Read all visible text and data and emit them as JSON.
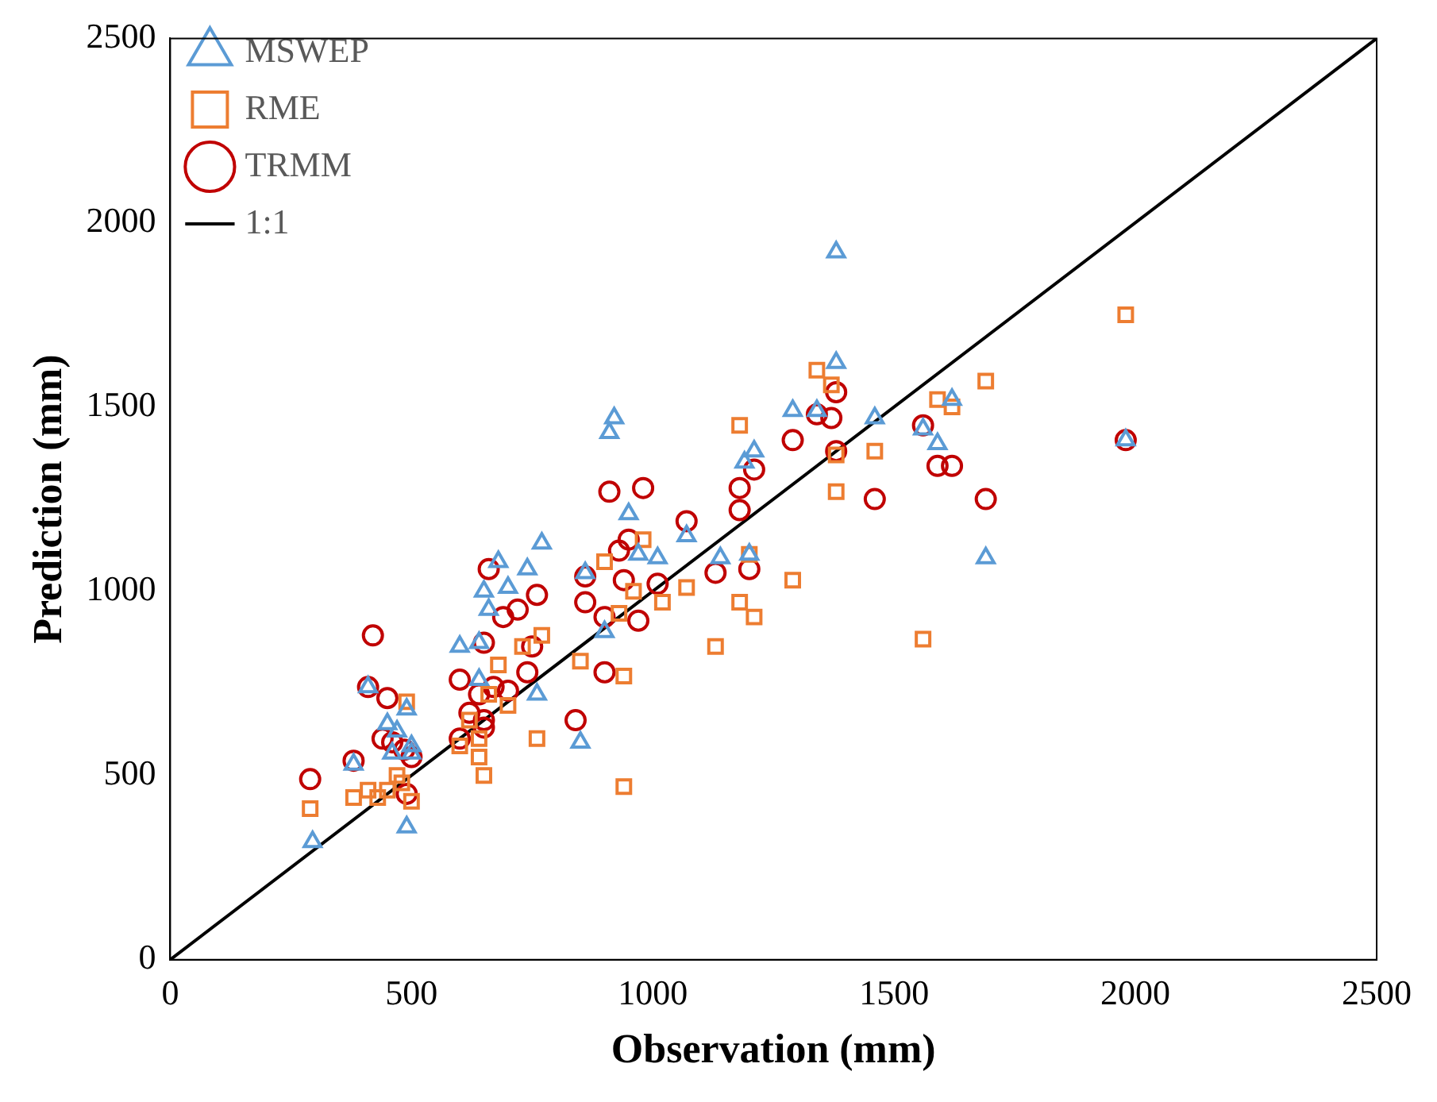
{
  "chart_data": {
    "type": "scatter",
    "xlabel": "Observation (mm)",
    "ylabel": "Prediction (mm)",
    "xlim": [
      0,
      2500
    ],
    "xticks": [
      0,
      500,
      1000,
      1500,
      2000,
      2500
    ],
    "ylim": [
      0,
      2500
    ],
    "yticks": [
      0,
      500,
      1000,
      1500,
      2000,
      2500
    ],
    "grid": false,
    "legend": "top left",
    "series": [
      {
        "name": "MSWEP",
        "color": "#5b9bd5",
        "marker": "triangle",
        "x": [
          295,
          380,
          410,
          450,
          470,
          490,
          490,
          500,
          600,
          640,
          650,
          660,
          680,
          700,
          740,
          760,
          770,
          850,
          860,
          900,
          910,
          920,
          950,
          970,
          1010,
          1070,
          1140,
          1190,
          1200,
          1210,
          1290,
          1340,
          1380,
          1380,
          1460,
          1560,
          1590,
          1620,
          1690,
          1980,
          640,
          460,
          500
        ],
        "values": [
          320,
          530,
          740,
          640,
          620,
          680,
          360,
          560,
          850,
          860,
          1000,
          950,
          1080,
          1010,
          1060,
          720,
          1130,
          590,
          1050,
          890,
          1430,
          1470,
          1210,
          1100,
          1090,
          1150,
          1090,
          1350,
          1100,
          1380,
          1490,
          1490,
          1920,
          1620,
          1470,
          1440,
          1400,
          1520,
          1090,
          1410,
          760,
          560,
          580
        ]
      },
      {
        "name": "RME",
        "color": "#ed7d31",
        "marker": "square",
        "x": [
          290,
          380,
          410,
          430,
          450,
          470,
          480,
          490,
          500,
          600,
          620,
          640,
          650,
          660,
          680,
          700,
          730,
          760,
          770,
          850,
          900,
          930,
          940,
          940,
          960,
          980,
          1020,
          1070,
          1130,
          1180,
          1180,
          1200,
          1210,
          1290,
          1340,
          1370,
          1380,
          1380,
          1460,
          1560,
          1590,
          1620,
          1690,
          1980,
          640
        ],
        "values": [
          410,
          440,
          460,
          440,
          460,
          500,
          480,
          700,
          430,
          580,
          650,
          550,
          500,
          720,
          800,
          690,
          850,
          600,
          880,
          810,
          1080,
          940,
          470,
          770,
          1000,
          1140,
          970,
          1010,
          850,
          970,
          1450,
          1100,
          930,
          1030,
          1600,
          1560,
          1270,
          1370,
          1380,
          870,
          1520,
          1500,
          1570,
          1750,
          600
        ]
      },
      {
        "name": "TRMM",
        "color": "#c00000",
        "marker": "circle",
        "x": [
          290,
          380,
          410,
          420,
          440,
          450,
          460,
          485,
          490,
          500,
          600,
          600,
          620,
          640,
          650,
          650,
          650,
          660,
          670,
          690,
          700,
          720,
          740,
          750,
          760,
          840,
          860,
          860,
          900,
          900,
          910,
          930,
          940,
          950,
          970,
          980,
          1010,
          1070,
          1130,
          1180,
          1180,
          1200,
          1210,
          1290,
          1340,
          1370,
          1380,
          1380,
          1460,
          1560,
          1590,
          1620,
          1690,
          1980
        ],
        "values": [
          490,
          540,
          740,
          880,
          600,
          710,
          590,
          570,
          450,
          550,
          760,
          600,
          670,
          720,
          650,
          630,
          860,
          1060,
          740,
          930,
          730,
          950,
          780,
          850,
          990,
          650,
          1040,
          970,
          780,
          930,
          1270,
          1110,
          1030,
          1140,
          920,
          1280,
          1020,
          1190,
          1050,
          1280,
          1220,
          1060,
          1330,
          1410,
          1480,
          1470,
          1540,
          1380,
          1250,
          1450,
          1340,
          1340,
          1250,
          1410
        ]
      },
      {
        "name": "1:1",
        "type": "line",
        "color": "#000000",
        "marker": "none",
        "line_style": "solid",
        "x": [
          0,
          2500
        ],
        "values": [
          0,
          2500
        ]
      }
    ]
  }
}
